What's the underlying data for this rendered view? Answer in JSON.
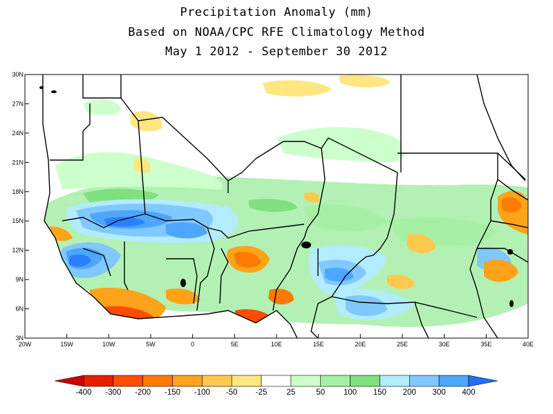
{
  "title": {
    "line1": "Precipitation Anomaly (mm)",
    "line2": "Based on NOAA/CPC RFE Climatology Method",
    "line3": "May 1 2012 - September 30 2012"
  },
  "axes": {
    "lon_ticks": [
      "20W",
      "15W",
      "10W",
      "5W",
      "0",
      "5E",
      "10E",
      "15E",
      "20E",
      "25E",
      "30E",
      "35E",
      "40E"
    ],
    "lat_ticks": [
      "30N",
      "27N",
      "24N",
      "21N",
      "18N",
      "15N",
      "12N",
      "9N",
      "6N",
      "3N"
    ]
  },
  "colorbar": {
    "labels": [
      "-400",
      "-300",
      "-200",
      "-150",
      "-100",
      "-50",
      "-25",
      "25",
      "50",
      "100",
      "150",
      "200",
      "300",
      "400"
    ],
    "colors": [
      "#c00000",
      "#e51f00",
      "#ff4d00",
      "#ff7a00",
      "#ffa31a",
      "#ffc94d",
      "#ffe680",
      "#ffffff",
      "#ccffcc",
      "#a6f0a6",
      "#80e080",
      "#b3ecff",
      "#80c8ff",
      "#4da6ff",
      "#2b7fff",
      "#1a5fff"
    ],
    "low_end_color": "#cc0000",
    "high_end_color": "#1f6fff"
  }
}
